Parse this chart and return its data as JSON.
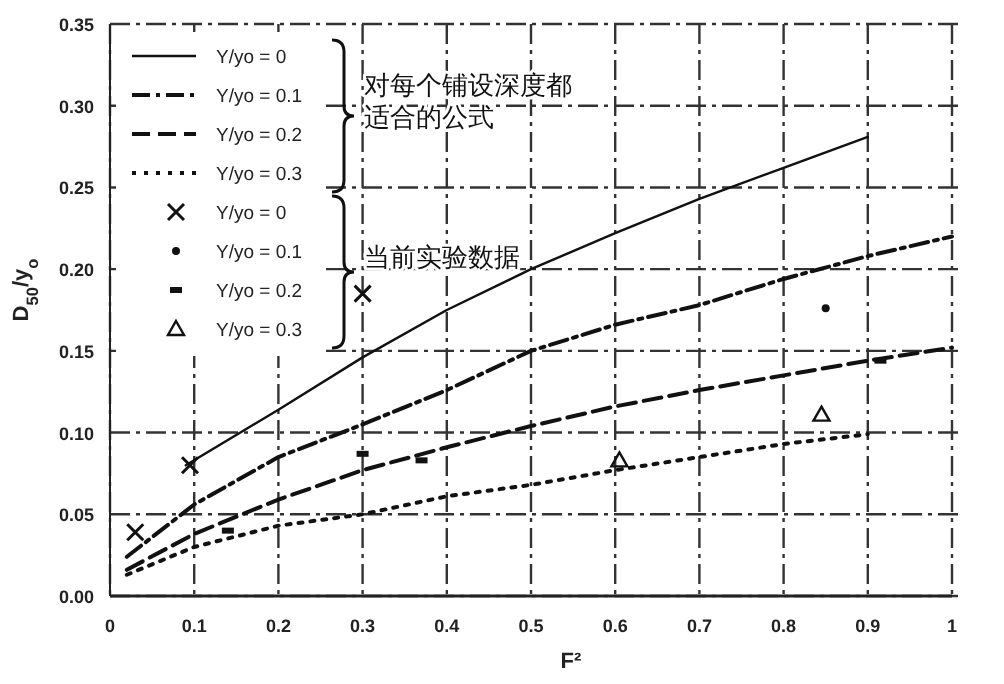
{
  "chart_data": {
    "type": "line",
    "xlabel": "F²",
    "ylabel": "D$_{50}$/y$_{o}$",
    "xlim": [
      0,
      1.0
    ],
    "ylim": [
      0,
      0.35
    ],
    "xticks": [
      0,
      0.1,
      0.2,
      0.3,
      0.4,
      0.5,
      0.6,
      0.7,
      0.8,
      0.9,
      1.0
    ],
    "yticks": [
      {
        "value": 0,
        "label": "0.00"
      },
      0.05,
      {
        "value": 0.1,
        "label": "0.10"
      },
      0.15,
      {
        "value": 0.2,
        "label": "0.20"
      },
      0.25,
      {
        "value": 0.3,
        "label": "0.30"
      },
      0.35
    ],
    "grid": true,
    "legend": "top left",
    "annotations": [
      "对每个铺设深度都适合的公式",
      "当前实验数据"
    ],
    "series": [
      {
        "name": "Y/yo = 0",
        "line_style": "solid",
        "color": "#111111",
        "x": [
          0.09,
          0.2,
          0.3,
          0.4,
          0.5,
          0.6,
          0.7,
          0.8,
          0.9
        ],
        "values": [
          0.08,
          0.114,
          0.146,
          0.175,
          0.2,
          0.222,
          0.243,
          0.262,
          0.281
        ]
      },
      {
        "name": "Y/yo = 0.1",
        "line_style": "dashdot",
        "color": "#111111",
        "x": [
          0.02,
          0.1,
          0.2,
          0.3,
          0.4,
          0.5,
          0.6,
          0.7,
          0.8,
          0.9,
          1.0
        ],
        "values": [
          0.024,
          0.056,
          0.085,
          0.105,
          0.126,
          0.15,
          0.166,
          0.178,
          0.194,
          0.208,
          0.22
        ]
      },
      {
        "name": "Y/yo = 0.2",
        "line_style": "dashed",
        "color": "#111111",
        "x": [
          0.02,
          0.1,
          0.2,
          0.3,
          0.4,
          0.5,
          0.6,
          0.7,
          0.8,
          0.9,
          1.0
        ],
        "values": [
          0.016,
          0.038,
          0.059,
          0.077,
          0.091,
          0.104,
          0.116,
          0.126,
          0.135,
          0.144,
          0.152
        ]
      },
      {
        "name": "Y/yo = 0.3",
        "line_style": "dotted",
        "color": "#111111",
        "x": [
          0.02,
          0.1,
          0.2,
          0.3,
          0.4,
          0.5,
          0.6,
          0.7,
          0.8,
          0.9
        ],
        "values": [
          0.013,
          0.03,
          0.043,
          0.05,
          0.061,
          0.068,
          0.077,
          0.085,
          0.093,
          0.099
        ]
      },
      {
        "name": "Y/yo = 0",
        "type": "scatter",
        "marker": "cross",
        "color": "#111111",
        "x": [
          0.03,
          0.095,
          0.3
        ],
        "values": [
          0.039,
          0.08,
          0.185
        ]
      },
      {
        "name": "Y/yo = 0.1",
        "type": "scatter",
        "marker": "circle",
        "color": "#111111",
        "x": [
          0.85
        ],
        "values": [
          0.176
        ]
      },
      {
        "name": "Y/yo = 0.2",
        "type": "scatter",
        "marker": "square",
        "color": "#111111",
        "x": [
          0.14,
          0.3,
          0.37,
          0.915
        ],
        "values": [
          0.04,
          0.087,
          0.083,
          0.144
        ]
      },
      {
        "name": "Y/yo = 0.3",
        "type": "scatter",
        "marker": "triangle",
        "color": "#111111",
        "x": [
          0.605,
          0.845
        ],
        "values": [
          0.083,
          0.111
        ]
      }
    ]
  }
}
